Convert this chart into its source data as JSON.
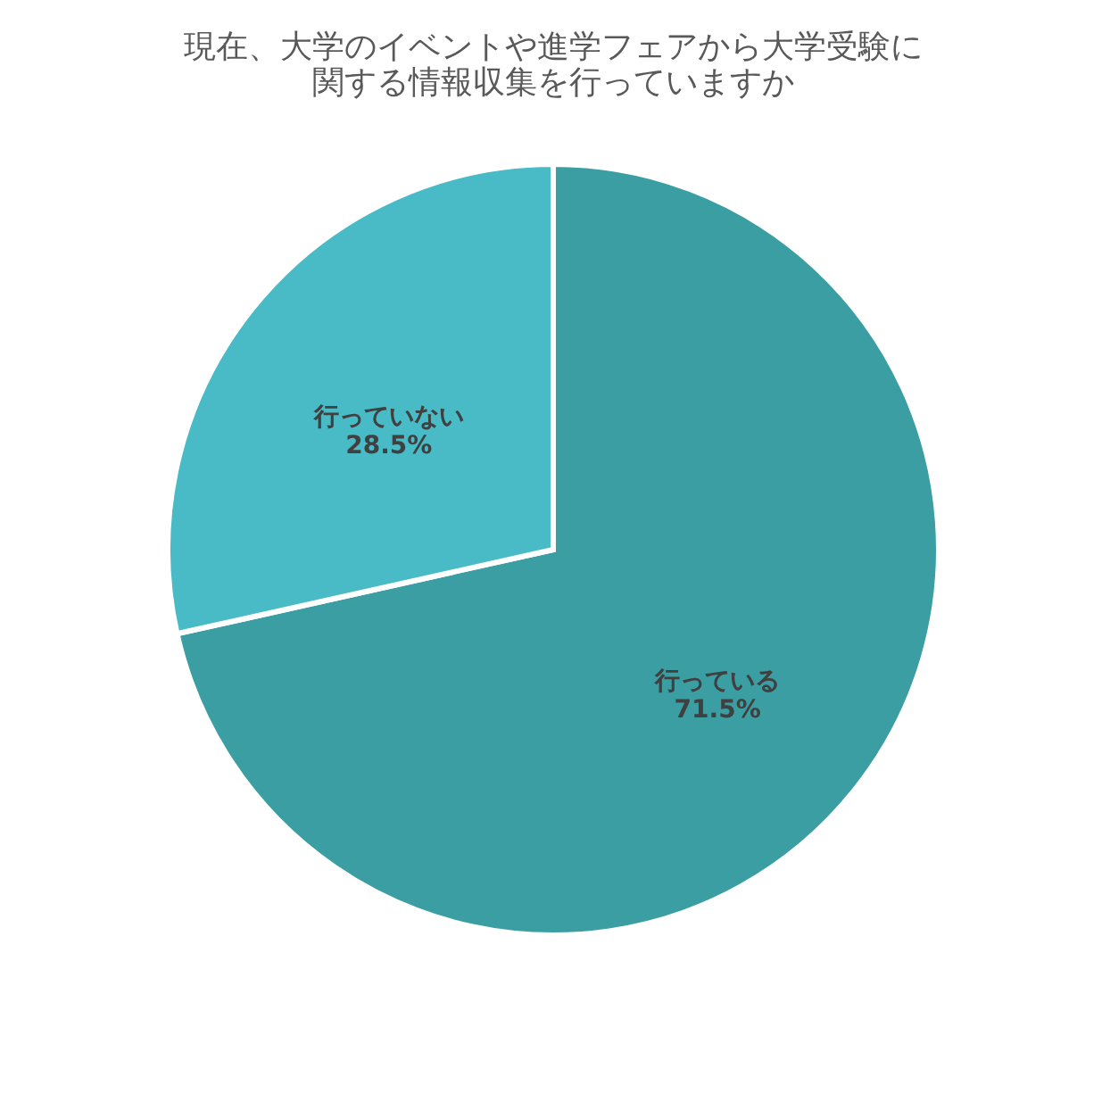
{
  "chart_data": {
    "type": "pie",
    "title": [
      "現在、大学のイベントや進学フェアから大学受験に",
      "関する情報収集を行っていますか"
    ],
    "categories": [
      "行っている",
      "行っていない"
    ],
    "values": [
      71.5,
      28.5
    ],
    "colors": [
      "#3a9ea3",
      "#48bbc6"
    ],
    "value_labels": [
      "71.5%",
      "28.5%"
    ],
    "legend": false
  }
}
